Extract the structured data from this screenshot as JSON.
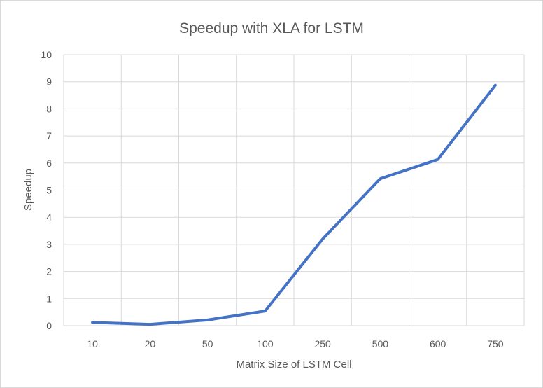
{
  "chart_data": {
    "type": "line",
    "title": "Speedup with XLA for LSTM",
    "xlabel": "Matrix Size of LSTM Cell",
    "ylabel": "Speedup",
    "categories": [
      "10",
      "20",
      "50",
      "100",
      "250",
      "500",
      "600",
      "750"
    ],
    "series": [
      {
        "values": [
          0.12,
          0.05,
          0.21,
          0.54,
          3.2,
          5.42,
          6.13,
          8.87
        ]
      }
    ],
    "ylim": [
      0,
      10
    ],
    "yticks": [
      "0",
      "1",
      "2",
      "3",
      "4",
      "5",
      "6",
      "7",
      "8",
      "9",
      "10"
    ],
    "grid": true,
    "legend": "none",
    "colors": {
      "line": "#4472c4",
      "grid": "#d9d9d9",
      "text": "#595959"
    }
  }
}
